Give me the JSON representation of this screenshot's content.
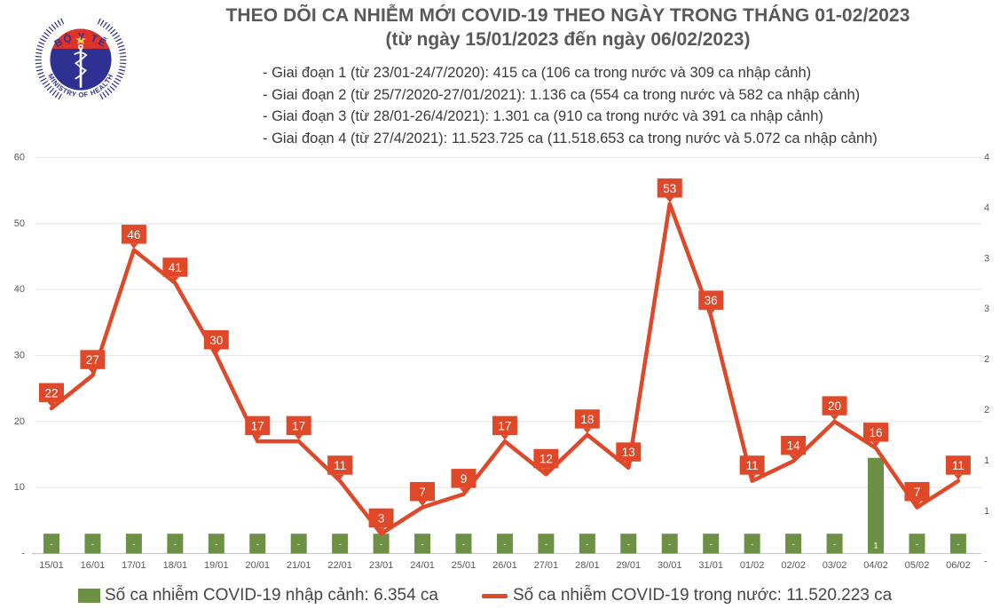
{
  "header": {
    "logo": {
      "top_text": "BỘ Y TẾ",
      "bottom_text": "MINISTRY OF HEALTH"
    },
    "title": "THEO DÕI CA NHIỄM MỚI COVID-19 THEO NGÀY TRONG THÁNG 01-02/2023",
    "subtitle": "(từ ngày 15/01/2023 đến ngày 06/02/2023)",
    "notes": [
      "- Giai đoạn 1 (từ 23/01-24/7/2020): 415 ca (106 ca trong nước và 309 ca nhập cảnh)",
      "- Giai đoạn 2 (từ 25/7/2020-27/01/2021): 1.136 ca (554 ca trong nước và 582 ca nhập cảnh)",
      "- Giai đoạn 3 (từ 28/01-26/4/2021): 1.301 ca (910 ca trong nước và 391 ca nhập cảnh)",
      "- Giai đoạn 4 (từ 27/4/2021): 11.523.725 ca (11.518.653 ca trong nước và 5.072 ca nhập cảnh)"
    ]
  },
  "chart_data": {
    "type": "line+bar",
    "categories": [
      "15/01",
      "16/01",
      "17/01",
      "18/01",
      "19/01",
      "20/01",
      "21/01",
      "22/01",
      "23/01",
      "24/01",
      "25/01",
      "26/01",
      "27/01",
      "28/01",
      "29/01",
      "30/01",
      "31/01",
      "01/02",
      "02/02",
      "03/02",
      "04/02",
      "05/02",
      "06/02"
    ],
    "series": [
      {
        "name": "Số ca nhiễm COVID-19 trong nước",
        "type": "line",
        "color": "#e0482a",
        "values": [
          22,
          27,
          46,
          41,
          30,
          17,
          17,
          11,
          3,
          7,
          9,
          17,
          12,
          18,
          13,
          53,
          36,
          11,
          14,
          20,
          16,
          7,
          11
        ]
      },
      {
        "name": "Số ca nhiễm COVID-19 nhập cảnh",
        "type": "bar",
        "color": "#6d9144",
        "labels_displayed": [
          "-",
          "-",
          "-",
          "-",
          "-",
          "-",
          "-",
          "-",
          "-",
          "-",
          "-",
          "-",
          "-",
          "-",
          "-",
          "-",
          "-",
          "-",
          "-",
          "-",
          "1",
          "-",
          "-"
        ],
        "values_estimated_left_axis_units": [
          3,
          3,
          3,
          3,
          3,
          3,
          3,
          3,
          3,
          3,
          3,
          3,
          3,
          3,
          3,
          3,
          3,
          3,
          3,
          3,
          14.5,
          3,
          3
        ]
      }
    ],
    "left_axis": {
      "tick_labels": [
        "60",
        "50",
        "40",
        "30",
        "20",
        "10",
        "-"
      ],
      "range": [
        0,
        60
      ],
      "tick_step": 10
    },
    "right_axis": {
      "visible_labels": [
        "4",
        "4",
        "3",
        "3",
        "2",
        "2",
        "1",
        "1",
        "-"
      ],
      "note": "labels clipped at image edge"
    },
    "grid": true,
    "legend_position": "bottom"
  },
  "legend": {
    "items": [
      {
        "marker": "square",
        "color": "#6d9144",
        "label": "Số ca nhiễm COVID-19 nhập cảnh: 6.354 ca"
      },
      {
        "marker": "line",
        "color": "#e0482a",
        "label": "Số ca nhiễm COVID-19 trong nước: 11.520.223 ca"
      }
    ]
  },
  "colors": {
    "line_red": "#e0482a",
    "bar_green": "#6d9144",
    "title_gray": "#595959",
    "axis_text": "#595959",
    "grid_line": "#e7e7e7",
    "logo_blue": "#2e3192",
    "logo_red": "#e03226",
    "star_yellow": "#ffd54a"
  }
}
